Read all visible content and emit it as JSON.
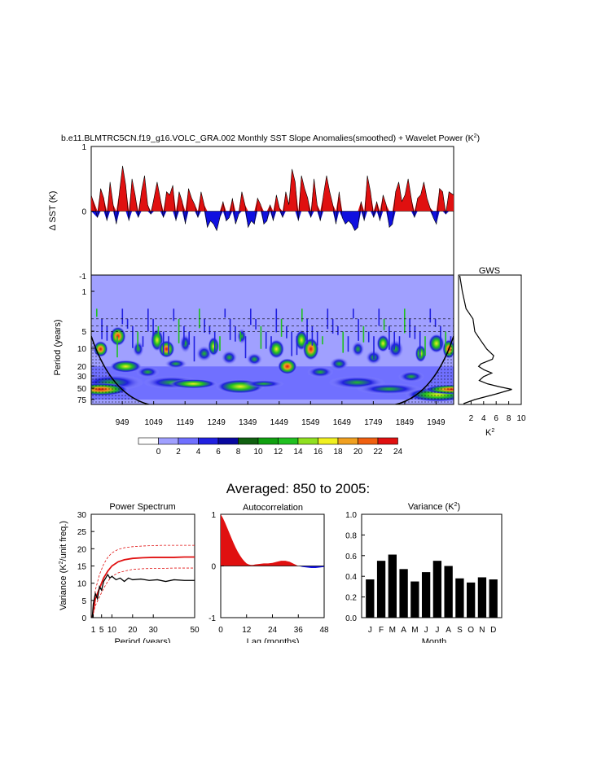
{
  "main_title": "b.e11.BLMTRC5CN.f19_g16.VOLC_GRA.002 Monthly SST Slope Anomalies(smoothed) + Wavelet Power (K",
  "main_title_sup": "2",
  "main_title_end": ")",
  "averaged_title": "Averaged: 850 to 2005:",
  "colors": {
    "positive": "#e01010",
    "negative": "#1010e0",
    "spectrum_mean": "#e01010",
    "spectrum_obs": "#000000",
    "bars": "#000000"
  },
  "chart_data": [
    {
      "id": "timeseries",
      "type": "area",
      "ylabel": "Δ SST (K)",
      "ylim": [
        -1,
        1
      ],
      "yticks": [
        "1",
        "0",
        "-1"
      ],
      "xlim": [
        850,
        2005
      ],
      "x": [
        850,
        870,
        880,
        890,
        900,
        910,
        920,
        930,
        940,
        950,
        960,
        970,
        980,
        990,
        1000,
        1010,
        1020,
        1030,
        1040,
        1050,
        1060,
        1070,
        1080,
        1090,
        1100,
        1110,
        1120,
        1130,
        1140,
        1150,
        1160,
        1170,
        1180,
        1190,
        1200,
        1210,
        1220,
        1230,
        1240,
        1250,
        1260,
        1270,
        1280,
        1290,
        1300,
        1310,
        1320,
        1330,
        1340,
        1350,
        1360,
        1370,
        1380,
        1390,
        1400,
        1410,
        1420,
        1430,
        1440,
        1450,
        1460,
        1470,
        1480,
        1490,
        1500,
        1510,
        1520,
        1530,
        1540,
        1550,
        1560,
        1570,
        1580,
        1590,
        1600,
        1610,
        1620,
        1630,
        1640,
        1650,
        1660,
        1670,
        1680,
        1690,
        1700,
        1710,
        1720,
        1730,
        1740,
        1750,
        1760,
        1770,
        1780,
        1790,
        1800,
        1810,
        1820,
        1830,
        1840,
        1850,
        1860,
        1870,
        1880,
        1890,
        1900,
        1910,
        1920,
        1930,
        1940,
        1950,
        1960,
        1970,
        1980,
        1990,
        2005
      ],
      "y": [
        0.25,
        -0.1,
        0.35,
        0.2,
        -0.15,
        0.45,
        0.1,
        -0.2,
        0.3,
        0.7,
        0.4,
        -0.15,
        0.5,
        0.25,
        -0.1,
        0.3,
        0.55,
        0.1,
        -0.05,
        0.2,
        0.45,
        0.2,
        -0.1,
        0.3,
        0.25,
        0.4,
        -0.15,
        0.3,
        0.15,
        -0.2,
        0.35,
        0.2,
        0.1,
        -0.1,
        0.3,
        0.1,
        -0.25,
        -0.15,
        -0.2,
        -0.3,
        -0.1,
        0.15,
        -0.15,
        -0.1,
        0.2,
        -0.2,
        -0.05,
        0.3,
        0.1,
        -0.25,
        -0.15,
        -0.2,
        0.2,
        0.1,
        -0.2,
        -0.15,
        0.1,
        -0.15,
        0.25,
        0.05,
        -0.1,
        0.3,
        0.1,
        0.65,
        0.45,
        -0.15,
        0.55,
        0.35,
        0.2,
        -0.1,
        0.5,
        0.1,
        -0.15,
        0.25,
        0.55,
        0.3,
        0.1,
        -0.2,
        0.3,
        -0.1,
        -0.2,
        -0.15,
        -0.2,
        -0.3,
        -0.25,
        0.15,
        -0.15,
        0.55,
        0.3,
        -0.1,
        0.15,
        -0.15,
        0.25,
        0.1,
        -0.25,
        -0.2,
        0.3,
        0.45,
        0.15,
        0.25,
        0.5,
        0.2,
        -0.1,
        0.2,
        0.25,
        0.45,
        0.2,
        0.05,
        -0.1,
        -0.2,
        0.35,
        0.3,
        -0.05,
        0.3,
        0.25
      ]
    },
    {
      "id": "wavelet",
      "type": "heatmap",
      "ylabel": "Period (years)",
      "yticks": [
        "1",
        "5",
        "10",
        "20",
        "30",
        "50",
        "75"
      ],
      "xticks": [
        "949",
        "1049",
        "1149",
        "1249",
        "1349",
        "1449",
        "1549",
        "1649",
        "1749",
        "1849",
        "1949"
      ],
      "colorbar_labels": [
        "0",
        "2",
        "4",
        "6",
        "8",
        "10",
        "12",
        "14",
        "16",
        "18",
        "20",
        "22",
        "24"
      ],
      "colorbar_colors": [
        "#ffffff",
        "#a0a0ff",
        "#7070ff",
        "#2020e0",
        "#0808a0",
        "#106010",
        "#10a010",
        "#20c020",
        "#90e020",
        "#f0f020",
        "#f0a020",
        "#f06010",
        "#e01010"
      ]
    },
    {
      "id": "gws",
      "type": "line",
      "title": "GWS",
      "xlabel": "K",
      "xlabel_sup": "2",
      "xticks": [
        "2",
        "4",
        "6",
        "8",
        "10"
      ],
      "xlim": [
        0,
        10
      ],
      "period": [
        0.5,
        1,
        2,
        3,
        5,
        7,
        10,
        13,
        15,
        18,
        20,
        23,
        26,
        30,
        35,
        40,
        45,
        50,
        60,
        75,
        90
      ],
      "power": [
        0.2,
        0.6,
        1.2,
        2.3,
        2.6,
        3.5,
        4.5,
        5.6,
        5.4,
        3.6,
        3.2,
        4.1,
        5.3,
        4.0,
        3.3,
        4.6,
        6.5,
        8.5,
        6.0,
        2.6,
        0.8
      ]
    },
    {
      "id": "power_spectrum",
      "type": "line",
      "title": "Power Spectrum",
      "xlabel": "Period (years)",
      "ylabel": "Variance (K",
      "ylabel_sup": "2",
      "ylabel_end": "/unit freq.)",
      "xticks": [
        "1",
        "5",
        "10",
        "20",
        "30",
        "50"
      ],
      "yticks": [
        "0",
        "5",
        "10",
        "15",
        "20",
        "25",
        "30"
      ],
      "xlim": [
        0,
        50
      ],
      "ylim": [
        0,
        30
      ],
      "series": [
        {
          "x": [
            0.5,
            2,
            4,
            6,
            8,
            10,
            13,
            16,
            20,
            25,
            30,
            35,
            40,
            45,
            50
          ],
          "y": [
            0,
            5.5,
            8.5,
            11.5,
            13.5,
            15,
            16.2,
            16.8,
            17.2,
            17.4,
            17.5,
            17.5,
            17.5,
            17.6,
            17.6
          ]
        },
        {
          "x": [
            0.5,
            2,
            4,
            6,
            8,
            10,
            13,
            16,
            20,
            25,
            30,
            35,
            40,
            45,
            50
          ],
          "y": [
            0,
            8,
            12.5,
            15.5,
            17.5,
            18.8,
            19.8,
            20.3,
            20.6,
            20.8,
            20.9,
            21,
            21,
            21,
            21
          ]
        },
        {
          "x": [
            0.5,
            2,
            4,
            6,
            8,
            10,
            13,
            16,
            20,
            25,
            30,
            35,
            40,
            45,
            50
          ],
          "y": [
            0,
            3.5,
            6,
            8.5,
            10.5,
            12,
            13,
            13.5,
            14,
            14.2,
            14.3,
            14.3,
            14.4,
            14.4,
            14.4
          ]
        },
        {
          "x": [
            0.5,
            1,
            2,
            3,
            4,
            5,
            6,
            7,
            8,
            9,
            10,
            12,
            14,
            16,
            18,
            20,
            24,
            28,
            32,
            36,
            40,
            45,
            50
          ],
          "y": [
            0,
            4,
            7,
            5.5,
            9,
            8,
            10.5,
            11.5,
            12.5,
            11.5,
            12,
            11,
            11.5,
            10.5,
            11.5,
            11,
            11.2,
            10.8,
            11,
            10.5,
            11,
            10.8,
            10.8
          ]
        }
      ]
    },
    {
      "id": "autocorrelation",
      "type": "area",
      "title": "Autocorrelation",
      "xlabel": "Lag (months)",
      "xticks": [
        "0",
        "12",
        "24",
        "36",
        "48"
      ],
      "yticks": [
        "1",
        "0",
        "-1"
      ],
      "xlim": [
        0,
        48
      ],
      "ylim": [
        -1,
        1
      ],
      "x": [
        0,
        1,
        2,
        3,
        4,
        5,
        6,
        7,
        8,
        9,
        10,
        11,
        12,
        13,
        14,
        15,
        16,
        18,
        20,
        22,
        24,
        26,
        28,
        30,
        32,
        34,
        36,
        38,
        40,
        42,
        44,
        46,
        48
      ],
      "y": [
        1,
        0.93,
        0.84,
        0.74,
        0.64,
        0.54,
        0.44,
        0.35,
        0.27,
        0.2,
        0.14,
        0.09,
        0.05,
        0.03,
        0.02,
        0.02,
        0.03,
        0.04,
        0.05,
        0.05,
        0.06,
        0.08,
        0.1,
        0.1,
        0.08,
        0.04,
        0,
        -0.02,
        -0.03,
        -0.04,
        -0.04,
        -0.03,
        -0.02
      ]
    },
    {
      "id": "variance",
      "type": "bar",
      "title": "Variance (K",
      "title_sup": "2",
      "title_end": ")",
      "xlabel": "Month",
      "categories": [
        "J",
        "F",
        "M",
        "A",
        "M",
        "J",
        "J",
        "A",
        "S",
        "O",
        "N",
        "D"
      ],
      "values": [
        0.37,
        0.55,
        0.61,
        0.47,
        0.35,
        0.44,
        0.55,
        0.5,
        0.38,
        0.34,
        0.39,
        0.37
      ],
      "yticks": [
        "0.0",
        "0.2",
        "0.4",
        "0.6",
        "0.8",
        "1.0"
      ],
      "ylim": [
        0,
        1
      ]
    }
  ]
}
